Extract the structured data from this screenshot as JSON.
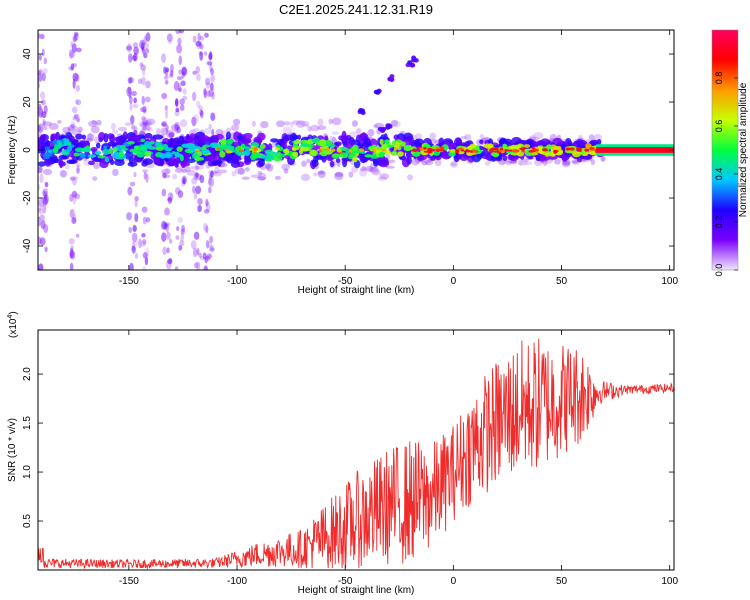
{
  "title": "C2E1.2025.241.12.31.R19",
  "chart_data": [
    {
      "type": "heatmap",
      "name": "spectrogram",
      "xlabel": "Height of straight line (km)",
      "ylabel": "Frequency (Hz)",
      "xlim": [
        -192,
        102
      ],
      "ylim": [
        -50,
        50
      ],
      "xticks": [
        -150,
        -100,
        -50,
        0,
        50,
        100
      ],
      "yticks": [
        -40,
        -20,
        0,
        20,
        40
      ],
      "colorbar": {
        "label": "Normalized spectral amplitude",
        "range": [
          0.0,
          1.0
        ],
        "ticks": [
          0.0,
          0.2,
          0.4,
          0.6,
          0.8
        ],
        "colors": [
          "#f2e6ff",
          "#7b00ff",
          "#1f00ff",
          "#00c8ff",
          "#00ff3c",
          "#c8ff00",
          "#ff9a00",
          "#ff0000",
          "#ff0060"
        ]
      },
      "features": [
        {
          "name": "main_band",
          "x_range": [
            -192,
            102
          ],
          "center_freq": 0,
          "amplitude_trend": "increasing with height"
        },
        {
          "name": "rising_branch",
          "points": [
            [
              -40,
              4
            ],
            [
              -33,
              8
            ],
            [
              -29,
              10
            ]
          ]
        },
        {
          "name": "upper_branch",
          "points": [
            [
              -42,
              16
            ],
            [
              -35,
              24
            ],
            [
              -28,
              30
            ],
            [
              -20,
              36
            ],
            [
              -17,
              38
            ]
          ]
        },
        {
          "name": "vertical_streaks",
          "x": [
            -190,
            -175,
            -148,
            -143,
            -132,
            -126,
            -118,
            -113
          ]
        }
      ]
    },
    {
      "type": "line",
      "name": "snr",
      "xlabel": "Height of straight line (km)",
      "ylabel": "SNR (10 * v/v)",
      "yscale_label": "(x10",
      "yscale_exp": "4",
      "xlim": [
        -192,
        102
      ],
      "ylim": [
        0,
        24500
      ],
      "xticks": [
        -150,
        -100,
        -50,
        0,
        50,
        100
      ],
      "yticks": [
        5000,
        10000,
        15000,
        20000
      ],
      "ytick_labels": [
        "0.5",
        "1.0",
        "1.5",
        "2.0"
      ],
      "color": "#ef2b2b",
      "envelope": [
        {
          "x": -192,
          "mean": 700,
          "amp": 500
        },
        {
          "x": -150,
          "mean": 600,
          "amp": 450
        },
        {
          "x": -110,
          "mean": 700,
          "amp": 500
        },
        {
          "x": -90,
          "mean": 1600,
          "amp": 1300
        },
        {
          "x": -70,
          "mean": 2200,
          "amp": 2000
        },
        {
          "x": -60,
          "mean": 3200,
          "amp": 3500
        },
        {
          "x": -45,
          "mean": 5000,
          "amp": 5000
        },
        {
          "x": -30,
          "mean": 6500,
          "amp": 6000
        },
        {
          "x": -20,
          "mean": 7000,
          "amp": 6500
        },
        {
          "x": -10,
          "mean": 7500,
          "amp": 5500
        },
        {
          "x": 0,
          "mean": 10000,
          "amp": 5000
        },
        {
          "x": 10,
          "mean": 13000,
          "amp": 6000
        },
        {
          "x": 20,
          "mean": 15000,
          "amp": 6500
        },
        {
          "x": 30,
          "mean": 16500,
          "amp": 7000
        },
        {
          "x": 40,
          "mean": 17000,
          "amp": 7000
        },
        {
          "x": 50,
          "mean": 17500,
          "amp": 6000
        },
        {
          "x": 60,
          "mean": 18000,
          "amp": 5000
        },
        {
          "x": 68,
          "mean": 18200,
          "amp": 1200
        },
        {
          "x": 80,
          "mean": 18400,
          "amp": 450
        },
        {
          "x": 102,
          "mean": 18600,
          "amp": 450
        }
      ]
    }
  ]
}
